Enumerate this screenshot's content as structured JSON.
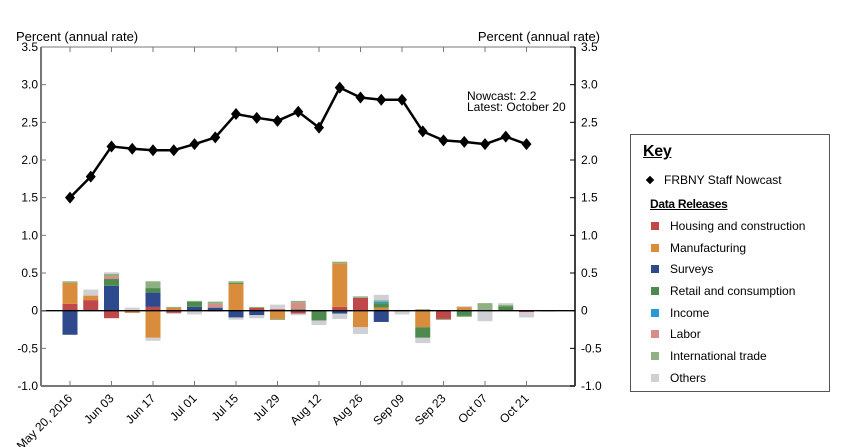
{
  "chart_data": {
    "type": "bar+line",
    "title": "",
    "left_axis_label": "Percent (annual rate)",
    "right_axis_label": "Percent (annual rate)",
    "ylim": [
      -1.0,
      3.5
    ],
    "yticks": [
      "3.5",
      "3.0",
      "2.5",
      "2.0",
      "1.5",
      "1.0",
      "0.5",
      "0",
      "-0.5",
      "-1.0"
    ],
    "ytick_values": [
      3.5,
      3.0,
      2.5,
      2.0,
      1.5,
      1.0,
      0.5,
      0,
      -0.5,
      -1.0
    ],
    "xtick_labels": [
      "May 20, 2016",
      "Jun 03",
      "Jun 17",
      "Jul 01",
      "Jul 15",
      "Jul 29",
      "Aug 12",
      "Aug 26",
      "Sep 09",
      "Sep 23",
      "Oct 07",
      "Oct 21"
    ],
    "x_weeks_total": 27,
    "annotation": {
      "line1": "Nowcast:  2.2",
      "line2": "Latest: October 20"
    },
    "nowcast": {
      "name": "FRBNY Staff Nowcast",
      "values": [
        1.5,
        1.78,
        2.18,
        2.15,
        2.13,
        2.13,
        2.21,
        2.3,
        2.61,
        2.56,
        2.52,
        2.64,
        2.43,
        2.96,
        2.83,
        2.8,
        2.8,
        2.38,
        2.26,
        2.24,
        2.21,
        2.31,
        2.21
      ]
    },
    "series_order": [
      "housing",
      "manufacturing",
      "surveys",
      "retail",
      "income",
      "labor",
      "trade",
      "others"
    ],
    "series": [
      {
        "key": "housing",
        "name": "Housing and construction",
        "color": "#c0474a"
      },
      {
        "key": "manufacturing",
        "name": "Manufacturing",
        "color": "#d98c3c"
      },
      {
        "key": "surveys",
        "name": "Surveys",
        "color": "#2f4a8c"
      },
      {
        "key": "retail",
        "name": "Retail and consumption",
        "color": "#4e8a4e"
      },
      {
        "key": "income",
        "name": "Income",
        "color": "#2a9ad6"
      },
      {
        "key": "labor",
        "name": "Labor",
        "color": "#d49088"
      },
      {
        "key": "trade",
        "name": "International trade",
        "color": "#8fb083"
      },
      {
        "key": "others",
        "name": "Others",
        "color": "#cfcfd6"
      }
    ],
    "bars": [
      {
        "housing": 0.09,
        "manufacturing": 0.28,
        "surveys": -0.32,
        "retail": 0.0,
        "income": 0.0,
        "labor": 0.0,
        "trade": 0.02,
        "others": 0.0
      },
      {
        "housing": 0.14,
        "manufacturing": 0.06,
        "surveys": 0.0,
        "retail": 0.0,
        "income": 0.0,
        "labor": 0.0,
        "trade": 0.0,
        "others": 0.08
      },
      {
        "housing": -0.1,
        "manufacturing": 0.0,
        "surveys": 0.33,
        "retail": 0.09,
        "income": 0.0,
        "labor": 0.04,
        "trade": 0.03,
        "others": 0.02
      },
      {
        "housing": -0.01,
        "manufacturing": -0.02,
        "surveys": 0.0,
        "retail": 0.0,
        "income": 0.0,
        "labor": 0.0,
        "trade": 0.01,
        "others": 0.03
      },
      {
        "housing": 0.05,
        "manufacturing": -0.36,
        "surveys": 0.19,
        "retail": 0.06,
        "income": 0.0,
        "labor": 0.0,
        "trade": 0.09,
        "others": -0.04
      },
      {
        "housing": -0.03,
        "manufacturing": 0.04,
        "surveys": 0.0,
        "retail": 0.0,
        "income": 0.0,
        "labor": 0.0,
        "trade": 0.01,
        "others": -0.01
      },
      {
        "housing": 0.0,
        "manufacturing": 0.0,
        "surveys": 0.05,
        "retail": 0.07,
        "income": 0.0,
        "labor": 0.0,
        "trade": 0.01,
        "others": -0.05
      },
      {
        "housing": 0.0,
        "manufacturing": 0.0,
        "surveys": 0.04,
        "retail": 0.0,
        "income": 0.0,
        "labor": 0.05,
        "trade": 0.03,
        "others": -0.01
      },
      {
        "housing": 0.0,
        "manufacturing": 0.36,
        "surveys": -0.09,
        "retail": 0.01,
        "income": 0.0,
        "labor": 0.0,
        "trade": 0.02,
        "others": -0.03
      },
      {
        "housing": 0.04,
        "manufacturing": 0.0,
        "surveys": -0.06,
        "retail": 0.0,
        "income": 0.0,
        "labor": 0.0,
        "trade": 0.01,
        "others": -0.04
      },
      {
        "housing": 0.02,
        "manufacturing": -0.11,
        "surveys": 0.0,
        "retail": 0.0,
        "income": 0.0,
        "labor": 0.0,
        "trade": -0.01,
        "others": 0.06
      },
      {
        "housing": -0.04,
        "manufacturing": 0.0,
        "surveys": 0.0,
        "retail": 0.02,
        "income": 0.0,
        "labor": 0.09,
        "trade": 0.02,
        "others": -0.02
      },
      {
        "housing": 0.0,
        "manufacturing": 0.0,
        "surveys": 0.0,
        "retail": -0.13,
        "income": 0.0,
        "labor": 0.0,
        "trade": 0.0,
        "others": -0.06
      },
      {
        "housing": 0.05,
        "manufacturing": 0.58,
        "surveys": -0.04,
        "retail": 0.0,
        "income": 0.0,
        "labor": 0.0,
        "trade": 0.02,
        "others": -0.07
      },
      {
        "housing": 0.17,
        "manufacturing": -0.22,
        "surveys": 0.0,
        "retail": 0.0,
        "income": 0.0,
        "labor": 0.0,
        "trade": 0.02,
        "others": -0.09
      },
      {
        "housing": 0.0,
        "manufacturing": 0.04,
        "surveys": -0.15,
        "retail": 0.06,
        "income": 0.02,
        "labor": 0.0,
        "trade": 0.02,
        "others": 0.07
      },
      {
        "housing": 0.0,
        "manufacturing": 0.0,
        "surveys": 0.0,
        "retail": 0.0,
        "income": 0.0,
        "labor": 0.0,
        "trade": 0.01,
        "others": -0.05
      },
      {
        "housing": 0.0,
        "manufacturing": -0.22,
        "surveys": 0.0,
        "retail": -0.14,
        "income": 0.0,
        "labor": 0.0,
        "trade": 0.02,
        "others": -0.07
      },
      {
        "housing": -0.11,
        "manufacturing": 0.0,
        "surveys": 0.0,
        "retail": 0.0,
        "income": 0.0,
        "labor": 0.0,
        "trade": -0.01,
        "others": 0.0
      },
      {
        "housing": 0.0,
        "manufacturing": 0.05,
        "surveys": 0.0,
        "retail": -0.07,
        "income": 0.0,
        "labor": 0.0,
        "trade": -0.01,
        "others": 0.01
      },
      {
        "housing": 0.0,
        "manufacturing": 0.0,
        "surveys": 0.0,
        "retail": 0.0,
        "income": 0.0,
        "labor": 0.0,
        "trade": 0.1,
        "others": -0.14
      },
      {
        "housing": 0.0,
        "manufacturing": 0.0,
        "surveys": 0.0,
        "retail": 0.06,
        "income": 0.0,
        "labor": 0.0,
        "trade": 0.02,
        "others": 0.02
      },
      {
        "housing": -0.02,
        "manufacturing": 0.0,
        "surveys": 0.0,
        "retail": 0.0,
        "income": 0.0,
        "labor": 0.0,
        "trade": 0.0,
        "others": -0.07
      },
      {
        "housing": 0.0,
        "manufacturing": 0.0,
        "surveys": 0.0,
        "retail": 0.0,
        "income": 0.0,
        "labor": 0.0,
        "trade": 0.0,
        "others": -0.01
      }
    ],
    "legend_placement": "right"
  },
  "key": {
    "title": "Key",
    "nowcast_label": "FRBNY Staff Nowcast",
    "data_releases_title": "Data Releases"
  }
}
